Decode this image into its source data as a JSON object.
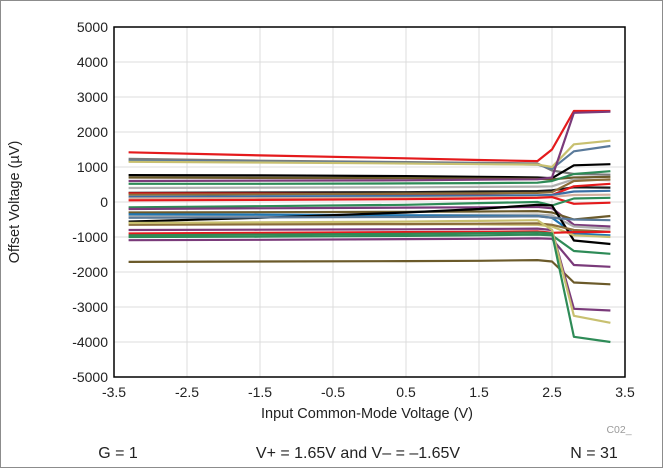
{
  "chart_data": {
    "type": "line",
    "title": "",
    "xlabel": "Input Common-Mode Voltage (V)",
    "ylabel": "Offset Voltage (µV)",
    "xlim": [
      -3.5,
      3.5
    ],
    "ylim": [
      -5000,
      5000
    ],
    "xticks": [
      -3.5,
      -2.5,
      -1.5,
      -0.5,
      0.5,
      1.5,
      2.5,
      3.5
    ],
    "xtick_labels": [
      "-3.5",
      "-2.5",
      "-1.5",
      "-0.5",
      "0.5",
      "1.5",
      "2.5",
      "3.5"
    ],
    "yticks": [
      -5000,
      -4000,
      -3000,
      -2000,
      -1000,
      0,
      1000,
      2000,
      3000,
      4000,
      5000
    ],
    "ytick_labels": [
      "-5000",
      "-4000",
      "-3000",
      "-2000",
      "-1000",
      "0",
      "1000",
      "2000",
      "3000",
      "4000",
      "5000"
    ],
    "grid": true,
    "legend": "none",
    "x": [
      -3.3,
      -1.5,
      0.5,
      1.5,
      2.3,
      2.5,
      2.8,
      3.3
    ],
    "series": [
      {
        "color": "#e41a1c",
        "values": [
          1420,
          1330,
          1250,
          1200,
          1170,
          1500,
          2600,
          2600
        ]
      },
      {
        "color": "#7b7b7b",
        "values": [
          1230,
          1180,
          1140,
          1120,
          1100,
          900,
          800,
          780
        ]
      },
      {
        "color": "#5a7a9a",
        "values": [
          1180,
          1150,
          1120,
          1090,
          1070,
          950,
          1450,
          1600
        ]
      },
      {
        "color": "#c8c070",
        "values": [
          1150,
          1130,
          1100,
          1080,
          1070,
          1000,
          1650,
          1750
        ]
      },
      {
        "color": "#000000",
        "values": [
          770,
          760,
          740,
          720,
          700,
          680,
          1050,
          1080
        ]
      },
      {
        "color": "#6b5a2a",
        "values": [
          700,
          690,
          680,
          670,
          660,
          650,
          700,
          720
        ]
      },
      {
        "color": "#7a3a7a",
        "values": [
          600,
          610,
          620,
          640,
          650,
          700,
          2550,
          2580
        ]
      },
      {
        "color": "#2e8b57",
        "values": [
          520,
          520,
          530,
          540,
          550,
          600,
          800,
          880
        ]
      },
      {
        "color": "#b0b0b0",
        "values": [
          400,
          410,
          420,
          430,
          440,
          450,
          650,
          620
        ]
      },
      {
        "color": "#1a1a1a",
        "values": [
          260,
          270,
          280,
          300,
          310,
          330,
          420,
          410
        ]
      },
      {
        "color": "#e41a1c",
        "values": [
          250,
          240,
          220,
          200,
          170,
          200,
          450,
          520
        ]
      },
      {
        "color": "#8b6d3a",
        "values": [
          210,
          220,
          240,
          250,
          260,
          280,
          600,
          650
        ]
      },
      {
        "color": "#3a6fa5",
        "values": [
          150,
          160,
          170,
          180,
          190,
          200,
          300,
          320
        ]
      },
      {
        "color": "#d4b0a0",
        "values": [
          100,
          110,
          120,
          130,
          140,
          150,
          200,
          210
        ]
      },
      {
        "color": "#e41a1c",
        "values": [
          50,
          60,
          80,
          100,
          120,
          140,
          -50,
          -20
        ]
      },
      {
        "color": "#2e8b57",
        "values": [
          -150,
          -120,
          -80,
          -30,
          0,
          -100,
          100,
          120
        ]
      },
      {
        "color": "#7a3a7a",
        "values": [
          -200,
          -180,
          -160,
          -150,
          -140,
          -180,
          -650,
          -700
        ]
      },
      {
        "color": "#6b5a2a",
        "values": [
          -300,
          -290,
          -280,
          -270,
          -260,
          -300,
          -500,
          -400
        ]
      },
      {
        "color": "#b0b0b0",
        "values": [
          -400,
          -390,
          -380,
          -370,
          -360,
          -380,
          -700,
          -760
        ]
      },
      {
        "color": "#1f77b4",
        "values": [
          -350,
          -360,
          -380,
          -390,
          -400,
          -450,
          -900,
          -950
        ]
      },
      {
        "color": "#000000",
        "values": [
          -560,
          -450,
          -300,
          -200,
          -80,
          -100,
          -1100,
          -1200
        ]
      },
      {
        "color": "#c8c070",
        "values": [
          -600,
          -620,
          -630,
          -640,
          -650,
          -700,
          -950,
          -1000
        ]
      },
      {
        "color": "#8b6d3a",
        "values": [
          -650,
          -640,
          -630,
          -620,
          -610,
          -650,
          -800,
          -850
        ]
      },
      {
        "color": "#e41a1c",
        "values": [
          -900,
          -880,
          -860,
          -850,
          -840,
          -880,
          -860,
          -850
        ]
      },
      {
        "color": "#2e8b57",
        "values": [
          -1000,
          -990,
          -970,
          -950,
          -930,
          -950,
          -1400,
          -1480
        ]
      },
      {
        "color": "#7a3a7a",
        "values": [
          -1090,
          -1080,
          -1060,
          -1050,
          -1040,
          -1050,
          -1800,
          -1850
        ]
      },
      {
        "color": "#6b5a2a",
        "values": [
          -1710,
          -1700,
          -1690,
          -1680,
          -1660,
          -1700,
          -2300,
          -2350
        ]
      },
      {
        "color": "#7a3a7a",
        "values": [
          -800,
          -790,
          -780,
          -770,
          -760,
          -800,
          -3050,
          -3100
        ]
      },
      {
        "color": "#c8c070",
        "values": [
          -600,
          -580,
          -560,
          -540,
          -520,
          -800,
          -3250,
          -3450
        ]
      },
      {
        "color": "#2e8b57",
        "values": [
          -950,
          -930,
          -910,
          -890,
          -870,
          -900,
          -3850,
          -4000
        ]
      },
      {
        "color": "#5a7a9a",
        "values": [
          -450,
          -440,
          -430,
          -420,
          -410,
          -450,
          -500,
          -520
        ]
      }
    ]
  },
  "footer": {
    "code": "C02_",
    "gain": "G = 1",
    "supply": "V+ = 1.65V and V– = –1.65V",
    "count": "N = 31"
  }
}
